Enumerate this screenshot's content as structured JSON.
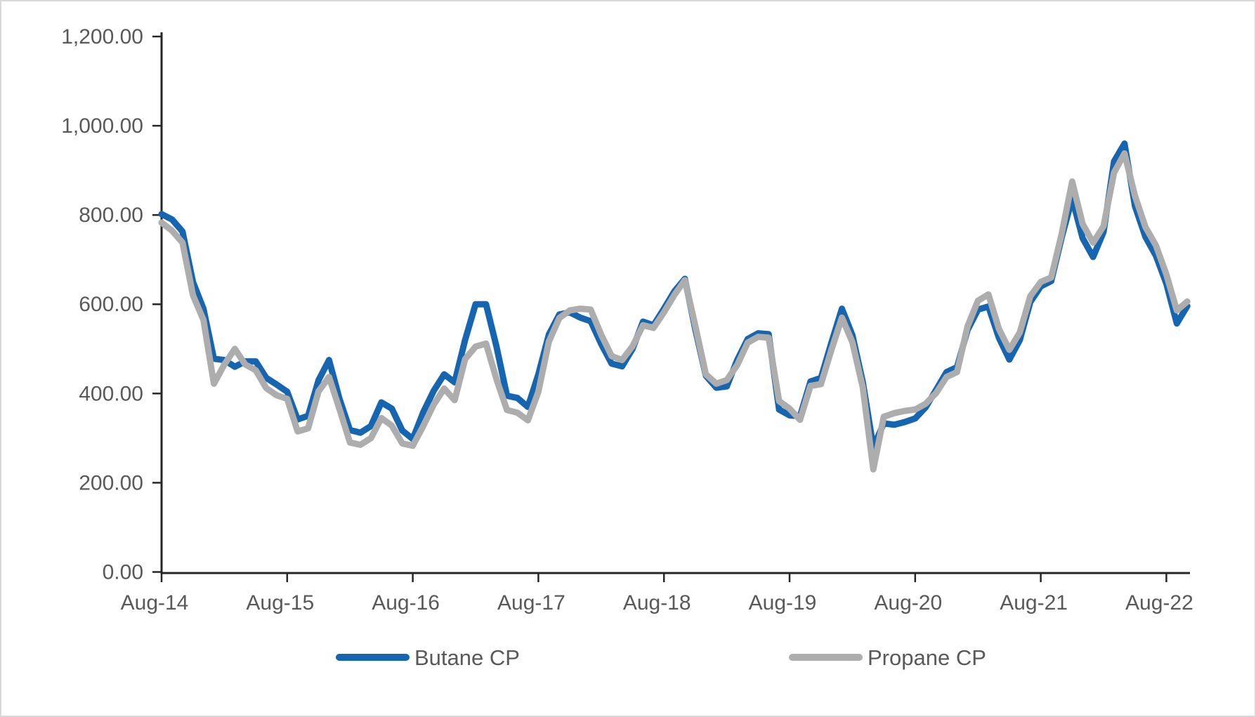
{
  "chart": {
    "background": "#FFFFFF",
    "border_color": "#D9D9D9",
    "axis_color": "#262626",
    "tick_label_color": "#595959",
    "y_axis_labels": [
      "1,200.00",
      "1,000.00",
      "800.00",
      "600.00",
      "400.00",
      "200.00",
      "0.00"
    ],
    "y_axis_values": [
      1200,
      1000,
      800,
      600,
      400,
      200,
      0
    ],
    "x_axis_labels": [
      "Aug-14",
      "Aug-15",
      "Aug-16",
      "Aug-17",
      "Aug-18",
      "Aug-19",
      "Aug-20",
      "Aug-21",
      "Aug-22"
    ],
    "x_axis_month_indices": [
      0,
      12,
      24,
      36,
      48,
      60,
      72,
      84,
      96
    ],
    "legend": [
      {
        "label": "Butane CP",
        "color": "#1565B0"
      },
      {
        "label": "Propane CP",
        "color": "#ADADAD"
      }
    ]
  },
  "chart_data": {
    "type": "line",
    "title": "",
    "xlabel": "",
    "ylabel": "",
    "ylim": [
      0,
      1200
    ],
    "y_tick_step": 200,
    "grid": false,
    "legend_position": "bottom",
    "x": [
      "Aug-14",
      "Sep-14",
      "Oct-14",
      "Nov-14",
      "Dec-14",
      "Jan-15",
      "Feb-15",
      "Mar-15",
      "Apr-15",
      "May-15",
      "Jun-15",
      "Jul-15",
      "Aug-15",
      "Sep-15",
      "Oct-15",
      "Nov-15",
      "Dec-15",
      "Jan-16",
      "Feb-16",
      "Mar-16",
      "Apr-16",
      "May-16",
      "Jun-16",
      "Jul-16",
      "Aug-16",
      "Sep-16",
      "Oct-16",
      "Nov-16",
      "Dec-16",
      "Jan-17",
      "Feb-17",
      "Mar-17",
      "Apr-17",
      "May-17",
      "Jun-17",
      "Jul-17",
      "Aug-17",
      "Sep-17",
      "Oct-17",
      "Nov-17",
      "Dec-17",
      "Jan-18",
      "Feb-18",
      "Mar-18",
      "Apr-18",
      "May-18",
      "Jun-18",
      "Jul-18",
      "Aug-18",
      "Sep-18",
      "Oct-18",
      "Nov-18",
      "Dec-18",
      "Jan-19",
      "Feb-19",
      "Mar-19",
      "Apr-19",
      "May-19",
      "Jun-19",
      "Jul-19",
      "Aug-19",
      "Sep-19",
      "Oct-19",
      "Nov-19",
      "Dec-19",
      "Jan-20",
      "Feb-20",
      "Mar-20",
      "Apr-20",
      "May-20",
      "Jun-20",
      "Jul-20",
      "Aug-20",
      "Sep-20",
      "Oct-20",
      "Nov-20",
      "Dec-20",
      "Jan-21",
      "Feb-21",
      "Mar-21",
      "Apr-21",
      "May-21",
      "Jun-21",
      "Jul-21",
      "Aug-21",
      "Sep-21",
      "Oct-21",
      "Nov-21",
      "Dec-21",
      "Jan-22",
      "Feb-22",
      "Mar-22",
      "Apr-22",
      "May-22",
      "Jun-22",
      "Jul-22",
      "Aug-22",
      "Sep-22",
      "Oct-22"
    ],
    "series": [
      {
        "name": "Butane CP",
        "color": "#1565B0",
        "values": [
          802,
          790,
          763,
          650,
          590,
          478,
          475,
          460,
          472,
          472,
          435,
          420,
          404,
          342,
          350,
          430,
          475,
          388,
          318,
          312,
          327,
          380,
          366,
          317,
          298,
          358,
          406,
          443,
          425,
          520,
          600,
          600,
          505,
          395,
          390,
          370,
          443,
          532,
          577,
          582,
          570,
          562,
          511,
          467,
          461,
          500,
          561,
          553,
          590,
          629,
          657,
          543,
          440,
          413,
          416,
          475,
          522,
          535,
          533,
          364,
          351,
          349,
          427,
          435,
          514,
          590,
          531,
          425,
          280,
          333,
          330,
          336,
          344,
          369,
          408,
          448,
          459,
          542,
          588,
          595,
          525,
          476,
          520,
          605,
          640,
          652,
          750,
          837,
          748,
          706,
          762,
          920,
          960,
          820,
          751,
          709,
          646,
          557,
          596
        ]
      },
      {
        "name": "Propane CP",
        "color": "#ADADAD",
        "values": [
          783,
          765,
          738,
          620,
          565,
          422,
          465,
          500,
          465,
          452,
          412,
          396,
          388,
          315,
          322,
          405,
          437,
          365,
          290,
          285,
          300,
          345,
          328,
          288,
          283,
          327,
          375,
          411,
          385,
          477,
          505,
          512,
          432,
          363,
          357,
          340,
          404,
          516,
          569,
          586,
          590,
          588,
          532,
          484,
          475,
          506,
          553,
          547,
          582,
          621,
          654,
          551,
          443,
          422,
          430,
          464,
          514,
          527,
          525,
          383,
          366,
          341,
          417,
          421,
          498,
          570,
          515,
          413,
          230,
          348,
          356,
          361,
          364,
          377,
          401,
          437,
          448,
          550,
          608,
          622,
          545,
          498,
          537,
          618,
          650,
          660,
          758,
          875,
          780,
          738,
          775,
          895,
          938,
          843,
          773,
          732,
          667,
          586,
          606
        ]
      }
    ]
  }
}
